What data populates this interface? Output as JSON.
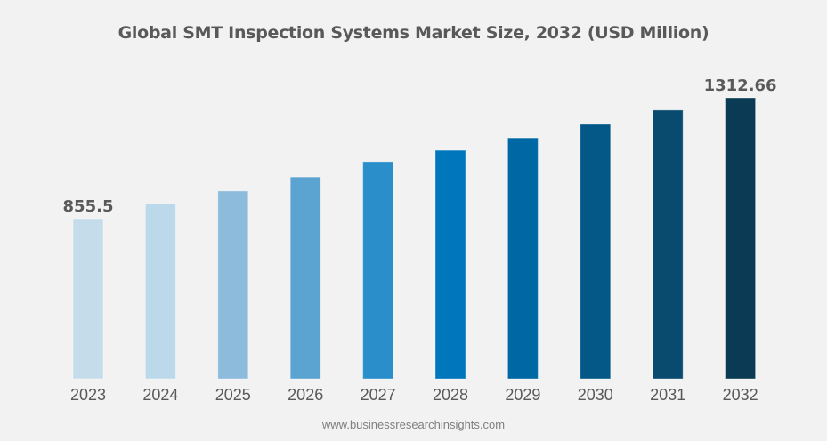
{
  "chart_data": {
    "type": "bar",
    "title": "Global SMT Inspection Systems Market Size, 2032 (USD Million)",
    "xlabel": "",
    "ylabel": "",
    "categories": [
      "2023",
      "2024",
      "2025",
      "2026",
      "2027",
      "2028",
      "2029",
      "2030",
      "2031",
      "2032"
    ],
    "values": [
      855.5,
      913,
      960,
      1013,
      1071,
      1114,
      1161,
      1212,
      1266,
      1312.66
    ],
    "data_labels": [
      {
        "index": 0,
        "text": "855.5"
      },
      {
        "index": 9,
        "text": "1312.66"
      }
    ],
    "bar_colors": [
      "#c5dcea",
      "#bcd9eb",
      "#8dbbdb",
      "#5ba3d0",
      "#2a8ecb",
      "#0077bd",
      "#0067a5",
      "#045888",
      "#084b6e",
      "#0b3a54"
    ],
    "grid": false,
    "legend": "none"
  },
  "footer": "www.businessresearchinsights.com"
}
